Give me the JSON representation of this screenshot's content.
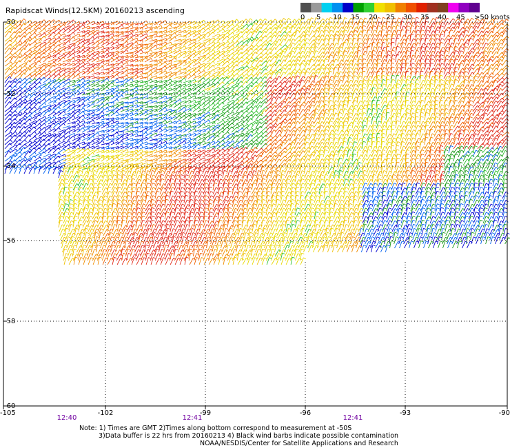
{
  "title": "Rapidscat Winds(12.5KM) 20160213 ascending",
  "color_scale": {
    "labels": [
      "0",
      "5",
      "10",
      "15",
      "20",
      "25",
      "30",
      "35",
      "40",
      "45",
      ">50 knots"
    ],
    "colors": [
      "#505050",
      "#9a9a9a",
      "#00d0f0",
      "#0090f0",
      "#0000c8",
      "#00a000",
      "#30d030",
      "#f0e000",
      "#f0c000",
      "#f08000",
      "#f05000",
      "#e02000",
      "#a03020",
      "#804020",
      "#f000f0",
      "#9000c0",
      "#600090"
    ]
  },
  "map": {
    "lat_labels": [
      "-50",
      "-52",
      "-54",
      "-56",
      "-58",
      "-60"
    ],
    "lon_labels": [
      "-105",
      "-102",
      "-99",
      "-96",
      "-93",
      "-90"
    ],
    "time_labels": [
      "12:40",
      "12:41",
      "12:41"
    ],
    "time_color": "#7000a0"
  },
  "notes": {
    "line1": "Note: 1) Times are GMT 2)Times along bottom correspond to measurement at -50S",
    "line2": "3)Data buffer is 22 hrs from 20160213 4) Black wind barbs indicate possible contamination",
    "credit": "NOAA/NESDIS/Center for Satellite Applications and Research"
  }
}
